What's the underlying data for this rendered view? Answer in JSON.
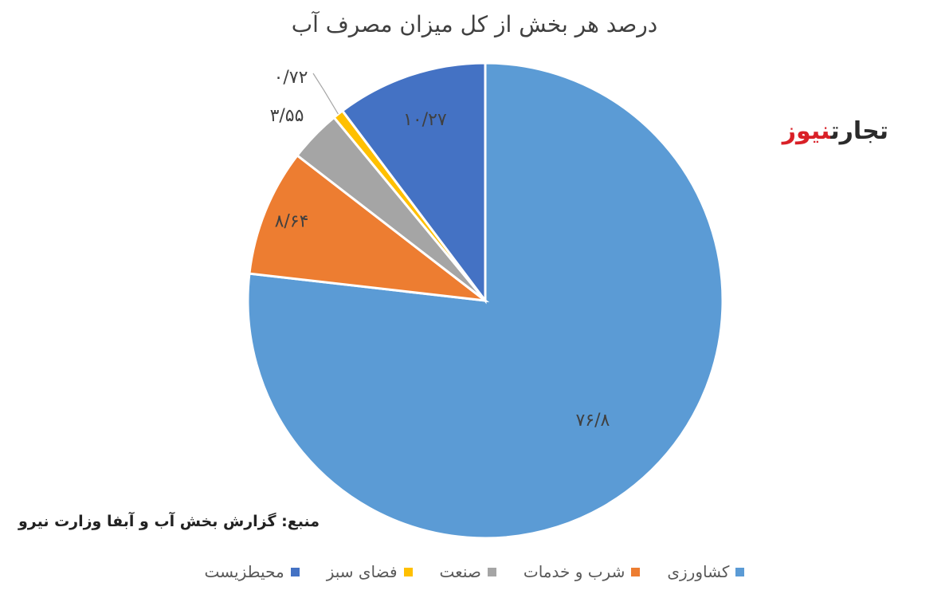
{
  "chart_data": {
    "type": "pie",
    "title": "درصد هر بخش از کل میزان مصرف آب",
    "categories": [
      "کشاورزی",
      "شرب و خدمات",
      "صنعت",
      "فضای سبز",
      "محیطزیست"
    ],
    "values": [
      76.8,
      8.64,
      3.55,
      0.72,
      10.27
    ],
    "data_labels": [
      "۷۶/۸",
      "۸/۶۴",
      "۳/۵۵",
      "۰/۷۲",
      "۱۰/۲۷"
    ],
    "colors": [
      "#5b9bd5",
      "#ed7d31",
      "#a5a5a5",
      "#ffc000",
      "#4472c4"
    ],
    "start_angle_deg": 0,
    "direction": "clockwise",
    "legend_position": "bottom"
  },
  "logo": {
    "part_dark": "تجارت",
    "part_red": "نیوز"
  },
  "source_note": "منبع: گزارش بخش آب و آبفا وزارت نیرو"
}
